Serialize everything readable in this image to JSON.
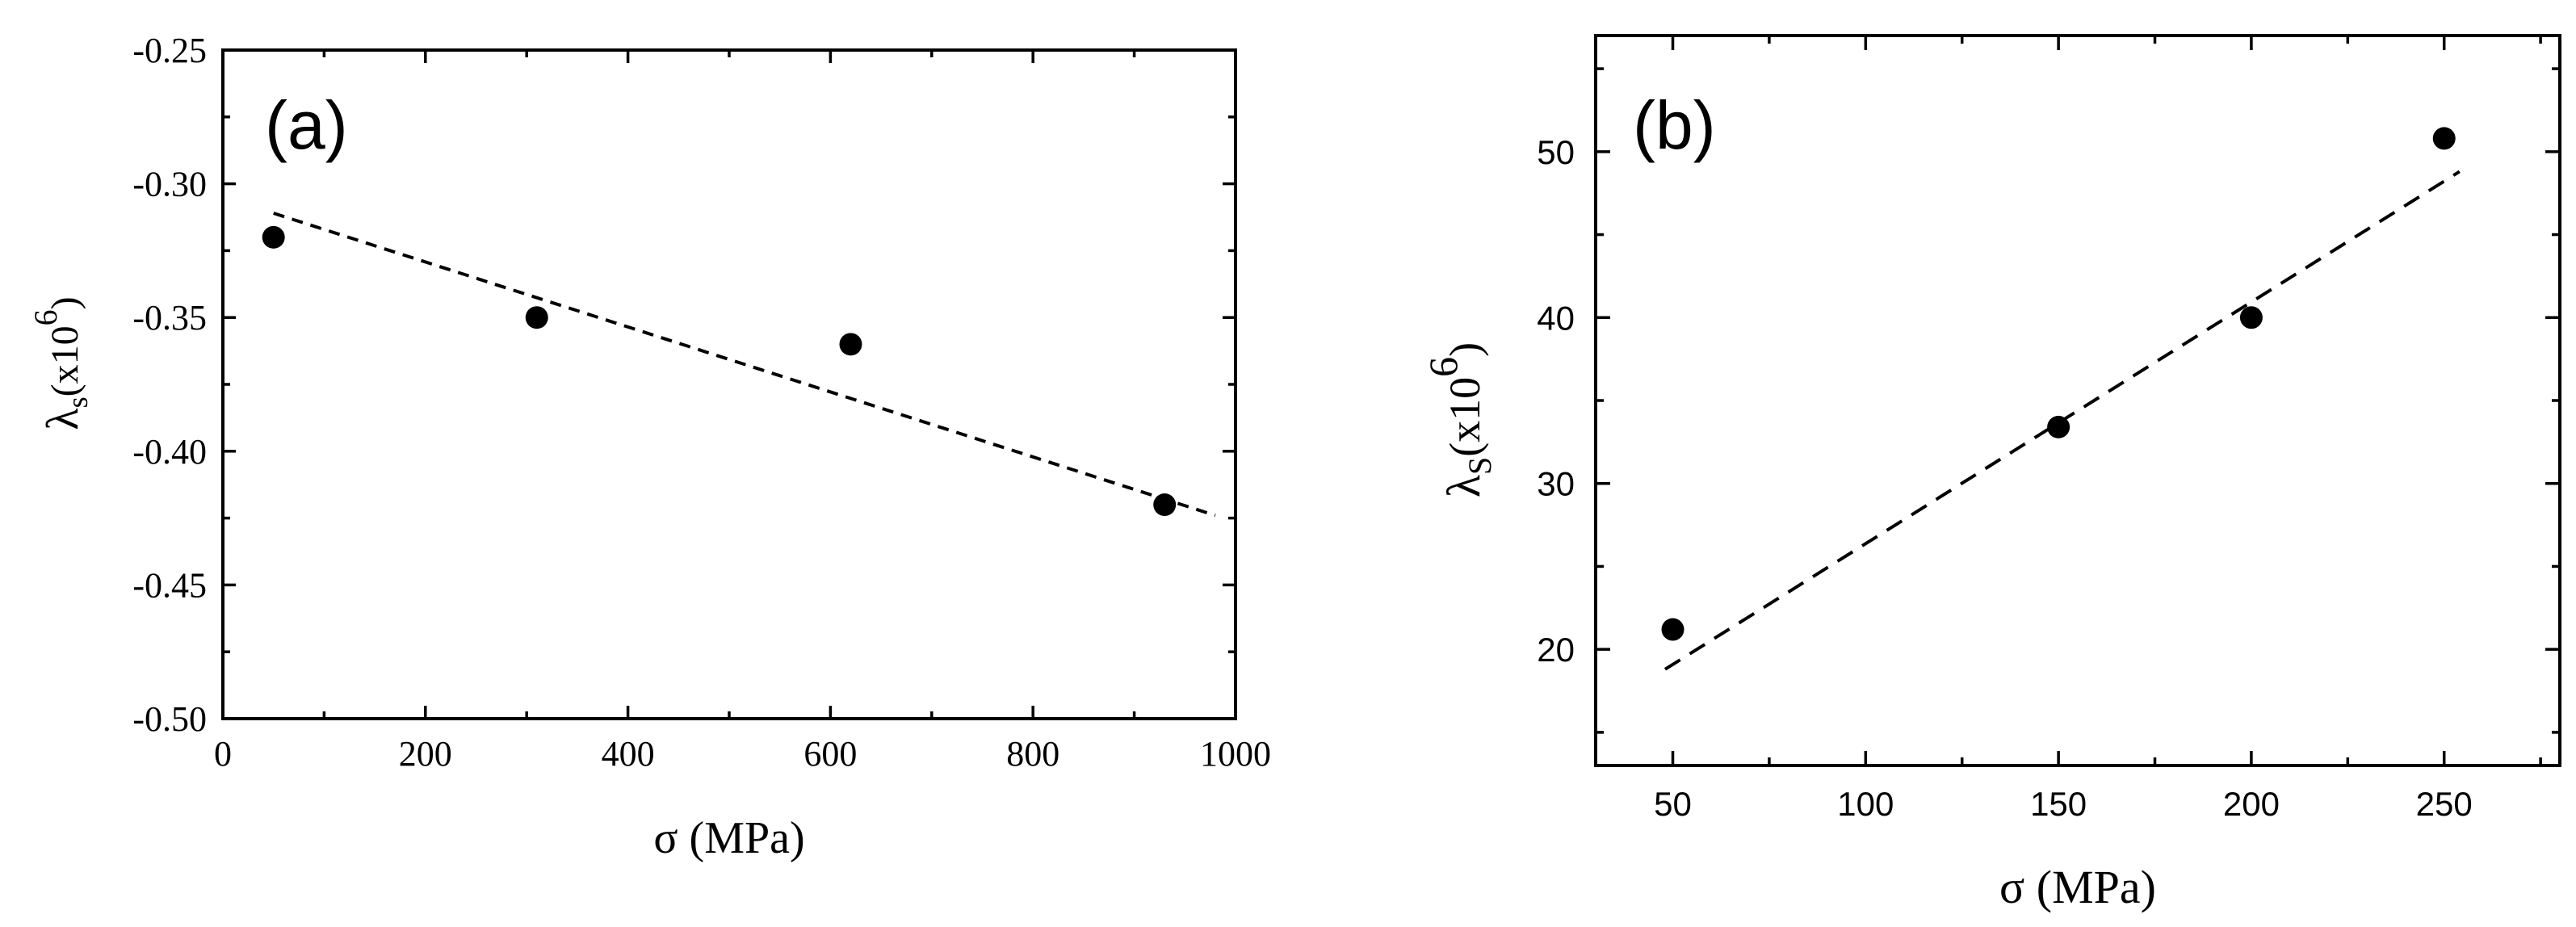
{
  "chart_data": [
    {
      "type": "scatter",
      "panel_label": "(a)",
      "xlabel": "σ (MPa)",
      "ylabel": {
        "base": "λ",
        "sub": "s",
        "rest": "(x10",
        "sup": "6",
        "close": ")"
      },
      "xlim": [
        0,
        1000
      ],
      "ylim": [
        -0.5,
        -0.25
      ],
      "x_ticks": [
        0,
        200,
        400,
        600,
        800,
        1000
      ],
      "x_tick_labels": [
        "0",
        "200",
        "400",
        "600",
        "800",
        "1000"
      ],
      "x_minor_ticks": [
        100,
        300,
        500,
        700,
        900
      ],
      "y_ticks": [
        -0.5,
        -0.45,
        -0.4,
        -0.35,
        -0.3,
        -0.25
      ],
      "y_tick_labels": [
        "-0.50",
        "-0.45",
        "-0.40",
        "-0.35",
        "-0.30",
        "-0.25"
      ],
      "y_minor_ticks": [
        -0.475,
        -0.425,
        -0.375,
        -0.325,
        -0.275
      ],
      "grid": false,
      "series": [
        {
          "x": [
            50,
            310,
            620,
            930
          ],
          "y": [
            -0.32,
            -0.35,
            -0.36,
            -0.42
          ]
        }
      ],
      "fit_line": {
        "style": "dashed",
        "x": [
          50,
          980
        ],
        "y": [
          -0.311,
          -0.424
        ]
      }
    },
    {
      "type": "scatter",
      "panel_label": "(b)",
      "xlabel": "σ (MPa)",
      "ylabel": {
        "base": "λ",
        "sub": "S",
        "rest": "(x10",
        "sup": "6",
        "close": ")"
      },
      "xlim": [
        30,
        280
      ],
      "ylim": [
        13,
        57
      ],
      "x_ticks": [
        50,
        100,
        150,
        200,
        250
      ],
      "x_tick_labels": [
        "50",
        "100",
        "150",
        "200",
        "250"
      ],
      "x_minor_ticks": [
        75,
        125,
        175,
        225,
        275
      ],
      "y_ticks": [
        20,
        30,
        40,
        50
      ],
      "y_tick_labels": [
        "20",
        "30",
        "40",
        "50"
      ],
      "y_minor_ticks": [
        15,
        25,
        35,
        45,
        55
      ],
      "grid": false,
      "series": [
        {
          "x": [
            50,
            150,
            200,
            250
          ],
          "y": [
            21.2,
            33.4,
            40.0,
            50.8
          ]
        }
      ],
      "fit_line": {
        "style": "dashed",
        "x": [
          48,
          254
        ],
        "y": [
          18.8,
          48.8
        ]
      }
    }
  ]
}
